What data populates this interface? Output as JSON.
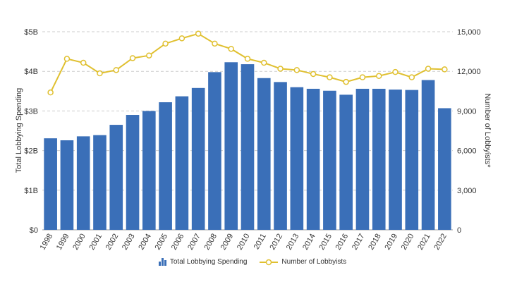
{
  "chart_data": {
    "type": "bar",
    "title": "",
    "categories": [
      "1998",
      "1999",
      "2000",
      "2001",
      "2002",
      "2003",
      "2004",
      "2005",
      "2006",
      "2007",
      "2008",
      "2009",
      "2010",
      "2011",
      "2012",
      "2013",
      "2014",
      "2015",
      "2016",
      "2017",
      "2018",
      "2019",
      "2020",
      "2021",
      "2022"
    ],
    "series": [
      {
        "name": "Total Lobbying Spending",
        "type": "bar",
        "axis": "left",
        "color": "#3a6fb8",
        "values": [
          2.31,
          2.26,
          2.36,
          2.39,
          2.65,
          2.9,
          3.0,
          3.22,
          3.37,
          3.58,
          3.98,
          4.23,
          4.18,
          3.83,
          3.73,
          3.6,
          3.56,
          3.51,
          3.41,
          3.56,
          3.56,
          3.54,
          3.53,
          3.78,
          3.07
        ]
      },
      {
        "name": "Number of Lobbyists",
        "type": "line",
        "axis": "right",
        "color": "#e0c030",
        "values": [
          10400,
          12950,
          12650,
          11850,
          12100,
          13000,
          13200,
          14100,
          14500,
          14850,
          14100,
          13700,
          12950,
          12650,
          12200,
          12100,
          11800,
          11550,
          11200,
          11550,
          11650,
          11950,
          11550,
          12200,
          12150
        ]
      }
    ],
    "ylabel": "Total Lobbying Spending",
    "y2label": "Number of Lobbyists*",
    "ylim": [
      0,
      5
    ],
    "y2lim": [
      0,
      15000
    ],
    "yticks": [
      "$0",
      "$1B",
      "$2B",
      "$3B",
      "$4B",
      "$5B"
    ],
    "y2ticks": [
      "0",
      "3,000",
      "6,000",
      "9,000",
      "12,000",
      "15,000"
    ],
    "grid": true,
    "legend": "bottom-center"
  }
}
